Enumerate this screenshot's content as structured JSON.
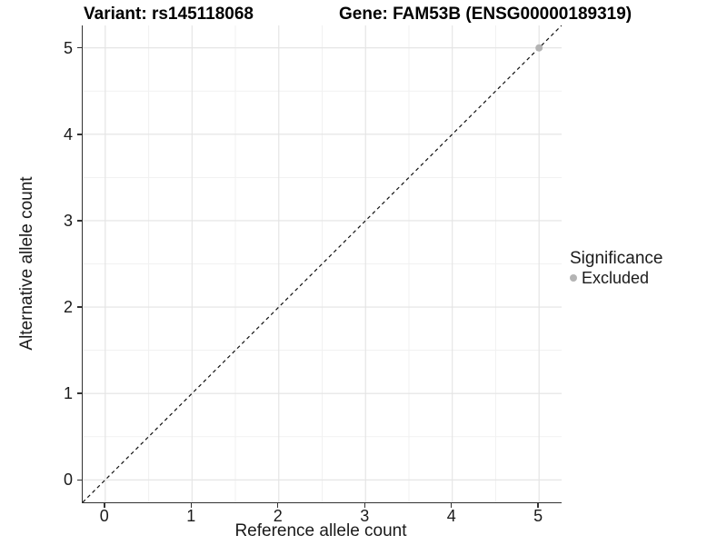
{
  "title": {
    "variant": "Variant: rs145118068",
    "gene": "Gene: FAM53B (ENSG00000189319)"
  },
  "axes": {
    "x_title": "Reference allele count",
    "y_title": "Alternative allele count"
  },
  "legend": {
    "title": "Significance",
    "items": [
      {
        "label": "Excluded",
        "color": "#b4b4b4"
      }
    ]
  },
  "colors": {
    "background": "#ffffff",
    "grid_major": "#e3e3e3",
    "grid_minor": "#f1f1f1",
    "axis_line": "#333333",
    "tick_mark": "#333333",
    "text": "#1a1a1a",
    "identity_line": "#111111",
    "excluded_point": "#b4b4b4"
  },
  "chart_data": {
    "type": "scatter",
    "title": "Variant: rs145118068 | Gene: FAM53B (ENSG00000189319)",
    "xlabel": "Reference allele count",
    "ylabel": "Alternative allele count",
    "xlim": [
      -0.26,
      5.26
    ],
    "ylim": [
      -0.26,
      5.26
    ],
    "x_ticks": [
      0,
      1,
      2,
      3,
      4,
      5
    ],
    "y_ticks": [
      0,
      1,
      2,
      3,
      4,
      5
    ],
    "minor_gridlines": [
      0.5,
      1.5,
      2.5,
      3.5,
      4.5
    ],
    "grid": "on",
    "legend_position": "right",
    "legend_title": "Significance",
    "series": [
      {
        "name": "Excluded",
        "color": "#b4b4b4",
        "points": [
          [
            5,
            5
          ]
        ]
      }
    ],
    "identity_line": {
      "type": "abline",
      "slope": 1,
      "intercept": 0,
      "style": "dashed"
    }
  }
}
